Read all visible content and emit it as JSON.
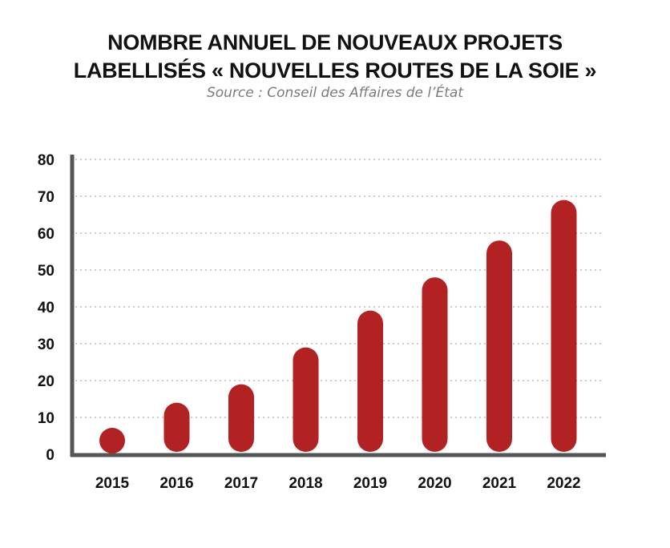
{
  "title_line1": "NOMBRE ANNUEL DE NOUVEAUX PROJETS",
  "title_line2": "LABELLISÉS « NOUVELLES ROUTES DE LA SOIE »",
  "subtitle": "Source : Conseil des Affaires de l’État",
  "colors": {
    "bar": "#b22222",
    "axis": "#555555",
    "grid": "#cccccc"
  },
  "chart_data": {
    "type": "bar",
    "title": "NOMBRE ANNUEL DE NOUVEAUX PROJETS LABELLISÉS « NOUVELLES ROUTES DE LA SOIE »",
    "subtitle": "Source : Conseil des Affaires de l’État",
    "categories": [
      "2015",
      "2016",
      "2017",
      "2018",
      "2019",
      "2020",
      "2021",
      "2022"
    ],
    "values": [
      4,
      14,
      19,
      29,
      39,
      48,
      58,
      69
    ],
    "ylim": [
      0,
      80
    ],
    "yticks": [
      0,
      10,
      20,
      30,
      40,
      50,
      60,
      70,
      80
    ],
    "xlabel": "",
    "ylabel": "",
    "grid": true,
    "bar_shape": "rounded"
  }
}
